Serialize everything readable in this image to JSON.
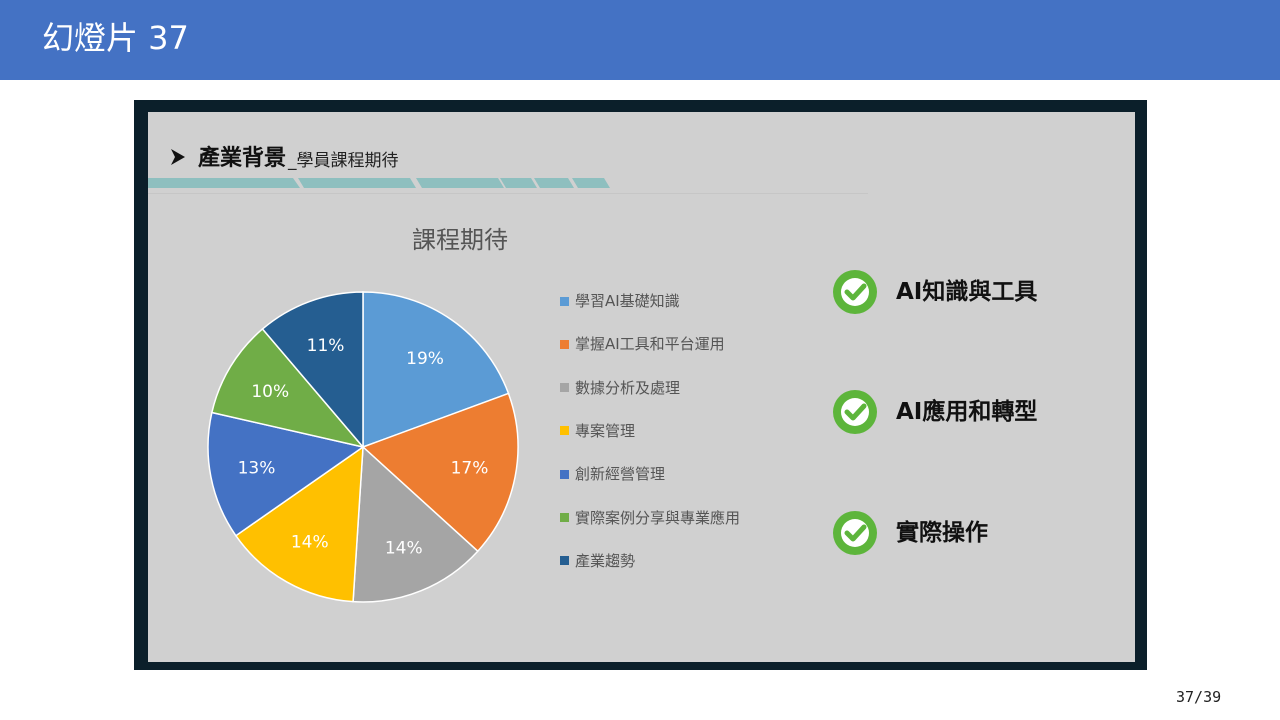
{
  "header": {
    "title": "幻燈片 37"
  },
  "slide": {
    "heading_main": "產業背景",
    "heading_sub": "_學員課程期待"
  },
  "chart_data": {
    "type": "pie",
    "title": "課程期待",
    "categories": [
      "學習AI基礎知識",
      "掌握AI工具和平台運用",
      "數據分析及處理",
      "專案管理",
      "創新經營管理",
      "實際案例分享與專業應用",
      "產業趨勢"
    ],
    "values": [
      19,
      17,
      14,
      14,
      13,
      10,
      11
    ],
    "labels": [
      "19%",
      "17%",
      "14%",
      "14%",
      "13%",
      "10%",
      "11%"
    ],
    "colors": [
      "#5b9bd5",
      "#ed7d31",
      "#a5a5a5",
      "#ffc000",
      "#4472c4",
      "#70ad47",
      "#255e91"
    ],
    "legend_position": "right"
  },
  "highlights": {
    "items": [
      {
        "label": "AI知識與工具",
        "icon": "check-circle-icon"
      },
      {
        "label": "AI應用和轉型",
        "icon": "check-circle-icon"
      },
      {
        "label": "實際操作",
        "icon": "check-circle-icon"
      }
    ],
    "icon_color": "#5db53b"
  },
  "footer": {
    "page_number": "37/39"
  }
}
